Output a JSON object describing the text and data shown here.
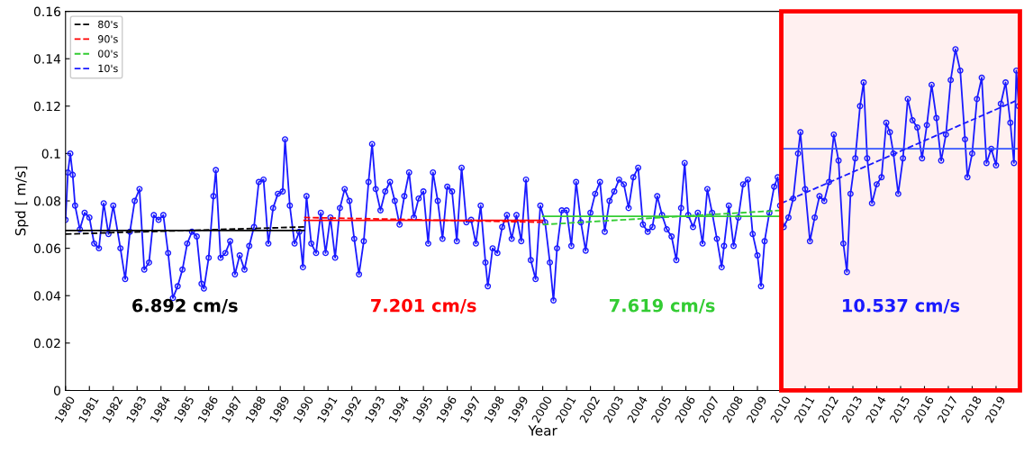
{
  "chart_data": {
    "type": "line",
    "xlabel": "Year",
    "ylabel": "Spd [ m/s]",
    "xlim": [
      1980,
      2020
    ],
    "ylim": [
      0,
      0.16
    ],
    "xticks": [
      1980,
      1981,
      1982,
      1983,
      1984,
      1985,
      1986,
      1987,
      1988,
      1989,
      1990,
      1991,
      1992,
      1993,
      1994,
      1995,
      1996,
      1997,
      1998,
      1999,
      2000,
      2001,
      2002,
      2003,
      2004,
      2005,
      2006,
      2007,
      2008,
      2009,
      2010,
      2011,
      2012,
      2013,
      2014,
      2015,
      2016,
      2017,
      2018,
      2019
    ],
    "yticks": [
      0,
      0.02,
      0.04,
      0.06,
      0.08,
      0.1,
      0.12,
      0.14,
      0.16
    ],
    "legend": "top left",
    "grid": false,
    "series": [
      {
        "color": "#1a1aff",
        "marker": "circle",
        "line_style": "solid",
        "x": [
          1980.0,
          1980.1,
          1980.2,
          1980.3,
          1980.4,
          1980.6,
          1980.8,
          1981.0,
          1981.2,
          1981.4,
          1981.6,
          1981.8,
          1982.0,
          1982.3,
          1982.5,
          1982.7,
          1982.9,
          1983.1,
          1983.3,
          1983.5,
          1983.7,
          1983.9,
          1984.1,
          1984.3,
          1984.5,
          1984.7,
          1984.9,
          1985.1,
          1985.3,
          1985.5,
          1985.7,
          1985.8,
          1986.0,
          1986.2,
          1986.3,
          1986.5,
          1986.7,
          1986.9,
          1987.1,
          1987.3,
          1987.5,
          1987.7,
          1987.9,
          1988.1,
          1988.3,
          1988.5,
          1988.7,
          1988.9,
          1989.1,
          1989.2,
          1989.4,
          1989.6,
          1989.8,
          1989.95,
          1990.1,
          1990.3,
          1990.5,
          1990.7,
          1990.9,
          1991.1,
          1991.3,
          1991.5,
          1991.7,
          1991.9,
          1992.1,
          1992.3,
          1992.5,
          1992.7,
          1992.85,
          1993.0,
          1993.2,
          1993.4,
          1993.6,
          1993.8,
          1994.0,
          1994.2,
          1994.4,
          1994.6,
          1994.8,
          1995.0,
          1995.2,
          1995.4,
          1995.6,
          1995.8,
          1996.0,
          1996.2,
          1996.4,
          1996.6,
          1996.8,
          1997.0,
          1997.2,
          1997.4,
          1997.6,
          1997.7,
          1997.9,
          1998.1,
          1998.3,
          1998.5,
          1998.7,
          1998.9,
          1999.1,
          1999.3,
          1999.5,
          1999.7,
          1999.9,
          2000.1,
          2000.3,
          2000.45,
          2000.6,
          2000.8,
          2001.0,
          2001.2,
          2001.4,
          2001.6,
          2001.8,
          2002.0,
          2002.2,
          2002.4,
          2002.6,
          2002.8,
          2003.0,
          2003.2,
          2003.4,
          2003.6,
          2003.8,
          2004.0,
          2004.2,
          2004.4,
          2004.6,
          2004.8,
          2005.0,
          2005.2,
          2005.4,
          2005.6,
          2005.8,
          2005.95,
          2006.1,
          2006.3,
          2006.5,
          2006.7,
          2006.9,
          2007.1,
          2007.3,
          2007.5,
          2007.6,
          2007.8,
          2008.0,
          2008.2,
          2008.4,
          2008.6,
          2008.8,
          2009.0,
          2009.15,
          2009.3,
          2009.5,
          2009.7,
          2009.85,
          2009.95,
          2010.1,
          2010.3,
          2010.5,
          2010.7,
          2010.8,
          2011.0,
          2011.2,
          2011.4,
          2011.6,
          2011.8,
          2012.0,
          2012.2,
          2012.4,
          2012.6,
          2012.75,
          2012.9,
          2013.1,
          2013.3,
          2013.45,
          2013.6,
          2013.8,
          2014.0,
          2014.2,
          2014.4,
          2014.55,
          2014.7,
          2014.9,
          2015.1,
          2015.3,
          2015.5,
          2015.7,
          2015.9,
          2016.1,
          2016.3,
          2016.5,
          2016.7,
          2016.9,
          2017.1,
          2017.3,
          2017.5,
          2017.7,
          2017.8,
          2018.0,
          2018.2,
          2018.4,
          2018.6,
          2018.8,
          2019.0,
          2019.2,
          2019.4,
          2019.6,
          2019.75,
          2019.85,
          2019.95
        ],
        "values": [
          0.072,
          0.092,
          0.1,
          0.091,
          0.078,
          0.068,
          0.075,
          0.073,
          0.062,
          0.06,
          0.079,
          0.066,
          0.078,
          0.06,
          0.047,
          0.067,
          0.08,
          0.085,
          0.051,
          0.054,
          0.074,
          0.072,
          0.074,
          0.058,
          0.039,
          0.044,
          0.051,
          0.062,
          0.067,
          0.065,
          0.045,
          0.043,
          0.056,
          0.082,
          0.093,
          0.056,
          0.058,
          0.063,
          0.049,
          0.057,
          0.051,
          0.061,
          0.069,
          0.088,
          0.089,
          0.062,
          0.077,
          0.083,
          0.084,
          0.106,
          0.078,
          0.062,
          0.067,
          0.052,
          0.082,
          0.062,
          0.058,
          0.075,
          0.058,
          0.073,
          0.056,
          0.077,
          0.085,
          0.08,
          0.064,
          0.049,
          0.063,
          0.088,
          0.104,
          0.085,
          0.076,
          0.084,
          0.088,
          0.08,
          0.07,
          0.082,
          0.092,
          0.073,
          0.081,
          0.084,
          0.062,
          0.092,
          0.08,
          0.064,
          0.086,
          0.084,
          0.063,
          0.094,
          0.071,
          0.072,
          0.062,
          0.078,
          0.054,
          0.044,
          0.06,
          0.058,
          0.069,
          0.074,
          0.064,
          0.074,
          0.063,
          0.089,
          0.055,
          0.047,
          0.078,
          0.071,
          0.054,
          0.038,
          0.06,
          0.076,
          0.076,
          0.061,
          0.088,
          0.071,
          0.059,
          0.075,
          0.083,
          0.088,
          0.067,
          0.08,
          0.084,
          0.089,
          0.087,
          0.077,
          0.09,
          0.094,
          0.07,
          0.067,
          0.069,
          0.082,
          0.074,
          0.068,
          0.065,
          0.055,
          0.077,
          0.096,
          0.074,
          0.069,
          0.075,
          0.062,
          0.085,
          0.075,
          0.064,
          0.052,
          0.061,
          0.078,
          0.061,
          0.073,
          0.087,
          0.089,
          0.066,
          0.057,
          0.044,
          0.063,
          0.075,
          0.086,
          0.09,
          0.078,
          0.069,
          0.073,
          0.081,
          0.1,
          0.109,
          0.085,
          0.063,
          0.073,
          0.082,
          0.08,
          0.088,
          0.108,
          0.097,
          0.062,
          0.05,
          0.083,
          0.098,
          0.12,
          0.13,
          0.098,
          0.079,
          0.087,
          0.09,
          0.113,
          0.109,
          0.1,
          0.083,
          0.098,
          0.123,
          0.114,
          0.111,
          0.098,
          0.112,
          0.129,
          0.115,
          0.097,
          0.108,
          0.131,
          0.144,
          0.135,
          0.106,
          0.09,
          0.1,
          0.123,
          0.132,
          0.096,
          0.102,
          0.095,
          0.121,
          0.13,
          0.113,
          0.096,
          0.135,
          0.12
        ]
      },
      {
        "color": "#000000",
        "line_style": "solid",
        "marker": "none",
        "x": [
          1980,
          1990
        ],
        "values": [
          0.0675,
          0.0675
        ]
      },
      {
        "color": "#ff0000",
        "line_style": "solid",
        "marker": "none",
        "x": [
          1990,
          2000
        ],
        "values": [
          0.0718,
          0.0718
        ]
      },
      {
        "color": "#33cc33",
        "line_style": "solid",
        "marker": "none",
        "x": [
          2000,
          2010
        ],
        "values": [
          0.0735,
          0.0735
        ]
      },
      {
        "color": "#3355ff",
        "line_style": "solid",
        "marker": "none",
        "x": [
          2010,
          2020
        ],
        "values": [
          0.102,
          0.102
        ]
      },
      {
        "name": "80's",
        "color": "#000000",
        "line_style": "dashed",
        "marker": "none",
        "x": [
          1980,
          1990
        ],
        "values": [
          0.066,
          0.069
        ]
      },
      {
        "name": "90's",
        "color": "#ff0000",
        "line_style": "dashed",
        "marker": "none",
        "x": [
          1990,
          2000
        ],
        "values": [
          0.073,
          0.071
        ]
      },
      {
        "name": "00's",
        "color": "#33cc33",
        "line_style": "dashed",
        "marker": "none",
        "x": [
          2000,
          2010
        ],
        "values": [
          0.07,
          0.076
        ]
      },
      {
        "name": "10's",
        "color": "#1a1aff",
        "line_style": "dashed",
        "marker": "none",
        "x": [
          2010,
          2020
        ],
        "values": [
          0.079,
          0.123
        ]
      }
    ],
    "bands": [
      {
        "axis": "x",
        "from": 2010,
        "to": 2020,
        "color": "#ff0000"
      }
    ],
    "annotations": [
      "6.892 cm/s",
      "7.201 cm/s",
      "7.619 cm/s",
      "10.537 cm/s"
    ]
  }
}
